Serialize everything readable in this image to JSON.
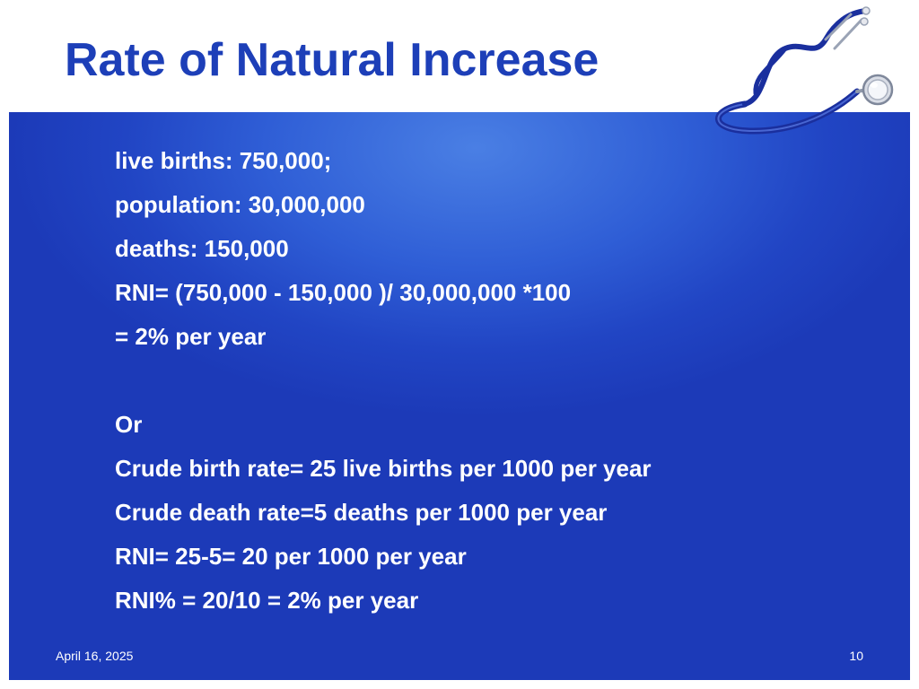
{
  "slide": {
    "title": "Rate of Natural Increase",
    "lines": [
      "live births: 750,000;",
      "population: 30,000,000",
      "deaths: 150,000",
      "RNI= (750,000 - 150,000 )/ 30,000,000 *100",
      "= 2% per year",
      "",
      "Or",
      "Crude birth rate= 25 live births per 1000 per year",
      "Crude death rate=5 deaths per 1000 per year",
      "RNI= 25-5= 20 per 1000 per year",
      "RNI% = 20/10 = 2% per year"
    ],
    "footer": {
      "date": "April 16, 2025",
      "page_number": "10"
    }
  },
  "decoration": {
    "icon": "stethoscope-icon"
  },
  "colors": {
    "title": "#1d3fb8",
    "panel": "#2a55cf",
    "text": "#ffffff"
  }
}
